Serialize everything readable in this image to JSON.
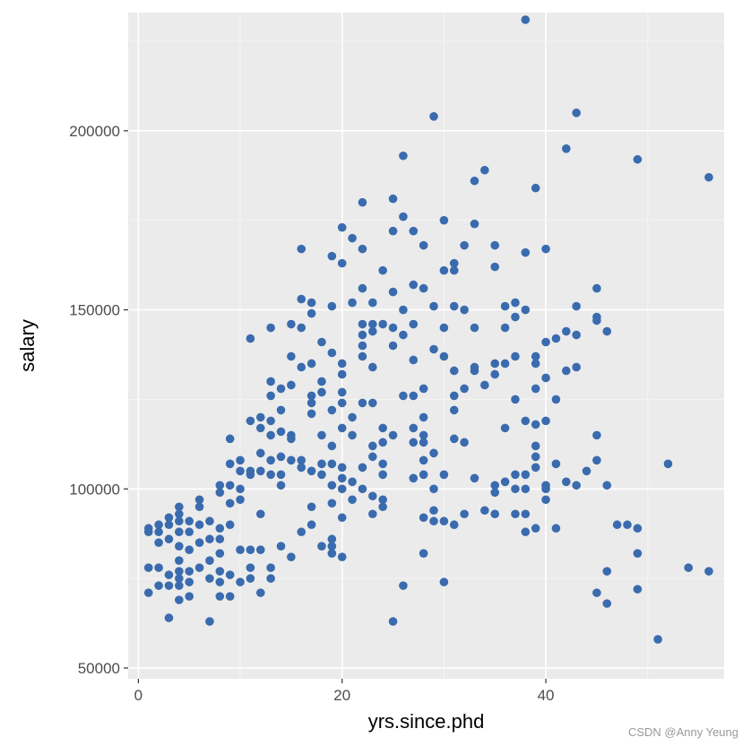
{
  "chart_data": {
    "type": "scatter",
    "title": "",
    "xlabel": "yrs.since.phd",
    "ylabel": "salary",
    "xlim": [
      -1,
      57.5
    ],
    "ylim": [
      47000,
      233000
    ],
    "x_ticks": [
      0,
      20,
      40
    ],
    "x_tick_labels": [
      "0",
      "20",
      "40"
    ],
    "y_ticks": [
      50000,
      100000,
      150000,
      200000
    ],
    "y_tick_labels": [
      "50000",
      "100000",
      "150000",
      "200000"
    ],
    "grid": true,
    "legend": "none",
    "colors": {
      "point": "#3A6BAE",
      "panel": "#EBEBEB",
      "grid_major": "#FFFFFF",
      "grid_minor": "#F5F5F5"
    },
    "points": [
      {
        "x": 1,
        "y": 88000
      },
      {
        "x": 1,
        "y": 89000
      },
      {
        "x": 1,
        "y": 78000
      },
      {
        "x": 1,
        "y": 71000
      },
      {
        "x": 2,
        "y": 88000
      },
      {
        "x": 2,
        "y": 90000
      },
      {
        "x": 2,
        "y": 85000
      },
      {
        "x": 2,
        "y": 78000
      },
      {
        "x": 2,
        "y": 73000
      },
      {
        "x": 3,
        "y": 92000
      },
      {
        "x": 3,
        "y": 90000
      },
      {
        "x": 3,
        "y": 86000
      },
      {
        "x": 3,
        "y": 76000
      },
      {
        "x": 3,
        "y": 73000
      },
      {
        "x": 3,
        "y": 64000
      },
      {
        "x": 4,
        "y": 95000
      },
      {
        "x": 4,
        "y": 93000
      },
      {
        "x": 4,
        "y": 91000
      },
      {
        "x": 4,
        "y": 88000
      },
      {
        "x": 4,
        "y": 84000
      },
      {
        "x": 4,
        "y": 80000
      },
      {
        "x": 4,
        "y": 77000
      },
      {
        "x": 4,
        "y": 75000
      },
      {
        "x": 4,
        "y": 73000
      },
      {
        "x": 4,
        "y": 69000
      },
      {
        "x": 5,
        "y": 91000
      },
      {
        "x": 5,
        "y": 88000
      },
      {
        "x": 5,
        "y": 83000
      },
      {
        "x": 5,
        "y": 77000
      },
      {
        "x": 5,
        "y": 74000
      },
      {
        "x": 5,
        "y": 70000
      },
      {
        "x": 6,
        "y": 97000
      },
      {
        "x": 6,
        "y": 95000
      },
      {
        "x": 6,
        "y": 90000
      },
      {
        "x": 6,
        "y": 85000
      },
      {
        "x": 6,
        "y": 78000
      },
      {
        "x": 7,
        "y": 91000
      },
      {
        "x": 7,
        "y": 86000
      },
      {
        "x": 7,
        "y": 80000
      },
      {
        "x": 7,
        "y": 75000
      },
      {
        "x": 7,
        "y": 63000
      },
      {
        "x": 8,
        "y": 101000
      },
      {
        "x": 8,
        "y": 99000
      },
      {
        "x": 8,
        "y": 89000
      },
      {
        "x": 8,
        "y": 86000
      },
      {
        "x": 8,
        "y": 82000
      },
      {
        "x": 8,
        "y": 77000
      },
      {
        "x": 8,
        "y": 74000
      },
      {
        "x": 8,
        "y": 70000
      },
      {
        "x": 9,
        "y": 114000
      },
      {
        "x": 9,
        "y": 107000
      },
      {
        "x": 9,
        "y": 101000
      },
      {
        "x": 9,
        "y": 96000
      },
      {
        "x": 9,
        "y": 90000
      },
      {
        "x": 9,
        "y": 76000
      },
      {
        "x": 9,
        "y": 70000
      },
      {
        "x": 10,
        "y": 108000
      },
      {
        "x": 10,
        "y": 105000
      },
      {
        "x": 10,
        "y": 100000
      },
      {
        "x": 10,
        "y": 97000
      },
      {
        "x": 10,
        "y": 83000
      },
      {
        "x": 10,
        "y": 74000
      },
      {
        "x": 11,
        "y": 142000
      },
      {
        "x": 11,
        "y": 119000
      },
      {
        "x": 11,
        "y": 105000
      },
      {
        "x": 11,
        "y": 104000
      },
      {
        "x": 11,
        "y": 83000
      },
      {
        "x": 11,
        "y": 78000
      },
      {
        "x": 11,
        "y": 75000
      },
      {
        "x": 12,
        "y": 120000
      },
      {
        "x": 12,
        "y": 117000
      },
      {
        "x": 12,
        "y": 110000
      },
      {
        "x": 12,
        "y": 105000
      },
      {
        "x": 12,
        "y": 93000
      },
      {
        "x": 12,
        "y": 83000
      },
      {
        "x": 12,
        "y": 71000
      },
      {
        "x": 13,
        "y": 145000
      },
      {
        "x": 13,
        "y": 130000
      },
      {
        "x": 13,
        "y": 126000
      },
      {
        "x": 13,
        "y": 119000
      },
      {
        "x": 13,
        "y": 115000
      },
      {
        "x": 13,
        "y": 108000
      },
      {
        "x": 13,
        "y": 104000
      },
      {
        "x": 13,
        "y": 78000
      },
      {
        "x": 13,
        "y": 75000
      },
      {
        "x": 14,
        "y": 128000
      },
      {
        "x": 14,
        "y": 122000
      },
      {
        "x": 14,
        "y": 116000
      },
      {
        "x": 14,
        "y": 109000
      },
      {
        "x": 14,
        "y": 104000
      },
      {
        "x": 14,
        "y": 101000
      },
      {
        "x": 14,
        "y": 84000
      },
      {
        "x": 15,
        "y": 146000
      },
      {
        "x": 15,
        "y": 137000
      },
      {
        "x": 15,
        "y": 129000
      },
      {
        "x": 15,
        "y": 115000
      },
      {
        "x": 15,
        "y": 114000
      },
      {
        "x": 15,
        "y": 108000
      },
      {
        "x": 15,
        "y": 81000
      },
      {
        "x": 16,
        "y": 167000
      },
      {
        "x": 16,
        "y": 153000
      },
      {
        "x": 16,
        "y": 145000
      },
      {
        "x": 16,
        "y": 134000
      },
      {
        "x": 16,
        "y": 108000
      },
      {
        "x": 16,
        "y": 106000
      },
      {
        "x": 16,
        "y": 88000
      },
      {
        "x": 17,
        "y": 152000
      },
      {
        "x": 17,
        "y": 149000
      },
      {
        "x": 17,
        "y": 135000
      },
      {
        "x": 17,
        "y": 126000
      },
      {
        "x": 17,
        "y": 124000
      },
      {
        "x": 17,
        "y": 121000
      },
      {
        "x": 17,
        "y": 105000
      },
      {
        "x": 17,
        "y": 95000
      },
      {
        "x": 17,
        "y": 90000
      },
      {
        "x": 18,
        "y": 141000
      },
      {
        "x": 18,
        "y": 130000
      },
      {
        "x": 18,
        "y": 127000
      },
      {
        "x": 18,
        "y": 115000
      },
      {
        "x": 18,
        "y": 107000
      },
      {
        "x": 18,
        "y": 104000
      },
      {
        "x": 18,
        "y": 84000
      },
      {
        "x": 19,
        "y": 165000
      },
      {
        "x": 19,
        "y": 151000
      },
      {
        "x": 19,
        "y": 138000
      },
      {
        "x": 19,
        "y": 122000
      },
      {
        "x": 19,
        "y": 112000
      },
      {
        "x": 19,
        "y": 107000
      },
      {
        "x": 19,
        "y": 101000
      },
      {
        "x": 19,
        "y": 96000
      },
      {
        "x": 19,
        "y": 86000
      },
      {
        "x": 19,
        "y": 84000
      },
      {
        "x": 19,
        "y": 82000
      },
      {
        "x": 20,
        "y": 173000
      },
      {
        "x": 20,
        "y": 163000
      },
      {
        "x": 20,
        "y": 135000
      },
      {
        "x": 20,
        "y": 132000
      },
      {
        "x": 20,
        "y": 127000
      },
      {
        "x": 20,
        "y": 124000
      },
      {
        "x": 20,
        "y": 117000
      },
      {
        "x": 20,
        "y": 106000
      },
      {
        "x": 20,
        "y": 103000
      },
      {
        "x": 20,
        "y": 100000
      },
      {
        "x": 20,
        "y": 92000
      },
      {
        "x": 20,
        "y": 81000
      },
      {
        "x": 21,
        "y": 170000
      },
      {
        "x": 21,
        "y": 152000
      },
      {
        "x": 21,
        "y": 120000
      },
      {
        "x": 21,
        "y": 115000
      },
      {
        "x": 21,
        "y": 102000
      },
      {
        "x": 21,
        "y": 97000
      },
      {
        "x": 22,
        "y": 180000
      },
      {
        "x": 22,
        "y": 167000
      },
      {
        "x": 22,
        "y": 156000
      },
      {
        "x": 22,
        "y": 146000
      },
      {
        "x": 22,
        "y": 143000
      },
      {
        "x": 22,
        "y": 140000
      },
      {
        "x": 22,
        "y": 137000
      },
      {
        "x": 22,
        "y": 124000
      },
      {
        "x": 22,
        "y": 106000
      },
      {
        "x": 22,
        "y": 100000
      },
      {
        "x": 23,
        "y": 152000
      },
      {
        "x": 23,
        "y": 146000
      },
      {
        "x": 23,
        "y": 144000
      },
      {
        "x": 23,
        "y": 134000
      },
      {
        "x": 23,
        "y": 124000
      },
      {
        "x": 23,
        "y": 112000
      },
      {
        "x": 23,
        "y": 109000
      },
      {
        "x": 23,
        "y": 98000
      },
      {
        "x": 23,
        "y": 93000
      },
      {
        "x": 24,
        "y": 161000
      },
      {
        "x": 24,
        "y": 146000
      },
      {
        "x": 24,
        "y": 117000
      },
      {
        "x": 24,
        "y": 113000
      },
      {
        "x": 24,
        "y": 107000
      },
      {
        "x": 24,
        "y": 104000
      },
      {
        "x": 24,
        "y": 97000
      },
      {
        "x": 24,
        "y": 95000
      },
      {
        "x": 25,
        "y": 181000
      },
      {
        "x": 25,
        "y": 172000
      },
      {
        "x": 25,
        "y": 155000
      },
      {
        "x": 25,
        "y": 145000
      },
      {
        "x": 25,
        "y": 140000
      },
      {
        "x": 25,
        "y": 115000
      },
      {
        "x": 25,
        "y": 63000
      },
      {
        "x": 26,
        "y": 193000
      },
      {
        "x": 26,
        "y": 176000
      },
      {
        "x": 26,
        "y": 150000
      },
      {
        "x": 26,
        "y": 143000
      },
      {
        "x": 26,
        "y": 126000
      },
      {
        "x": 26,
        "y": 73000
      },
      {
        "x": 27,
        "y": 172000
      },
      {
        "x": 27,
        "y": 157000
      },
      {
        "x": 27,
        "y": 146000
      },
      {
        "x": 27,
        "y": 136000
      },
      {
        "x": 27,
        "y": 126000
      },
      {
        "x": 27,
        "y": 117000
      },
      {
        "x": 27,
        "y": 113000
      },
      {
        "x": 27,
        "y": 103000
      },
      {
        "x": 28,
        "y": 168000
      },
      {
        "x": 28,
        "y": 156000
      },
      {
        "x": 28,
        "y": 128000
      },
      {
        "x": 28,
        "y": 120000
      },
      {
        "x": 28,
        "y": 115000
      },
      {
        "x": 28,
        "y": 113000
      },
      {
        "x": 28,
        "y": 108000
      },
      {
        "x": 28,
        "y": 104000
      },
      {
        "x": 28,
        "y": 92000
      },
      {
        "x": 28,
        "y": 82000
      },
      {
        "x": 29,
        "y": 204000
      },
      {
        "x": 29,
        "y": 151000
      },
      {
        "x": 29,
        "y": 139000
      },
      {
        "x": 29,
        "y": 110000
      },
      {
        "x": 29,
        "y": 100000
      },
      {
        "x": 29,
        "y": 94000
      },
      {
        "x": 29,
        "y": 91000
      },
      {
        "x": 30,
        "y": 175000
      },
      {
        "x": 30,
        "y": 161000
      },
      {
        "x": 30,
        "y": 145000
      },
      {
        "x": 30,
        "y": 137000
      },
      {
        "x": 30,
        "y": 104000
      },
      {
        "x": 30,
        "y": 91000
      },
      {
        "x": 30,
        "y": 74000
      },
      {
        "x": 31,
        "y": 163000
      },
      {
        "x": 31,
        "y": 161000
      },
      {
        "x": 31,
        "y": 151000
      },
      {
        "x": 31,
        "y": 133000
      },
      {
        "x": 31,
        "y": 126000
      },
      {
        "x": 31,
        "y": 122000
      },
      {
        "x": 31,
        "y": 114000
      },
      {
        "x": 31,
        "y": 90000
      },
      {
        "x": 32,
        "y": 168000
      },
      {
        "x": 32,
        "y": 150000
      },
      {
        "x": 32,
        "y": 128000
      },
      {
        "x": 32,
        "y": 113000
      },
      {
        "x": 32,
        "y": 93000
      },
      {
        "x": 33,
        "y": 186000
      },
      {
        "x": 33,
        "y": 174000
      },
      {
        "x": 33,
        "y": 145000
      },
      {
        "x": 33,
        "y": 134000
      },
      {
        "x": 33,
        "y": 133000
      },
      {
        "x": 33,
        "y": 103000
      },
      {
        "x": 34,
        "y": 189000
      },
      {
        "x": 34,
        "y": 129000
      },
      {
        "x": 34,
        "y": 94000
      },
      {
        "x": 35,
        "y": 168000
      },
      {
        "x": 35,
        "y": 162000
      },
      {
        "x": 35,
        "y": 135000
      },
      {
        "x": 35,
        "y": 132000
      },
      {
        "x": 35,
        "y": 101000
      },
      {
        "x": 35,
        "y": 99000
      },
      {
        "x": 35,
        "y": 93000
      },
      {
        "x": 36,
        "y": 151000
      },
      {
        "x": 36,
        "y": 145000
      },
      {
        "x": 36,
        "y": 135000
      },
      {
        "x": 36,
        "y": 117000
      },
      {
        "x": 36,
        "y": 102000
      },
      {
        "x": 37,
        "y": 152000
      },
      {
        "x": 37,
        "y": 148000
      },
      {
        "x": 37,
        "y": 137000
      },
      {
        "x": 37,
        "y": 125000
      },
      {
        "x": 37,
        "y": 104000
      },
      {
        "x": 37,
        "y": 100000
      },
      {
        "x": 37,
        "y": 93000
      },
      {
        "x": 38,
        "y": 231000
      },
      {
        "x": 38,
        "y": 166000
      },
      {
        "x": 38,
        "y": 150000
      },
      {
        "x": 38,
        "y": 119000
      },
      {
        "x": 38,
        "y": 104000
      },
      {
        "x": 38,
        "y": 100000
      },
      {
        "x": 38,
        "y": 93000
      },
      {
        "x": 38,
        "y": 88000
      },
      {
        "x": 39,
        "y": 184000
      },
      {
        "x": 39,
        "y": 137000
      },
      {
        "x": 39,
        "y": 135000
      },
      {
        "x": 39,
        "y": 128000
      },
      {
        "x": 39,
        "y": 118000
      },
      {
        "x": 39,
        "y": 112000
      },
      {
        "x": 39,
        "y": 109000
      },
      {
        "x": 39,
        "y": 106000
      },
      {
        "x": 39,
        "y": 89000
      },
      {
        "x": 40,
        "y": 167000
      },
      {
        "x": 40,
        "y": 141000
      },
      {
        "x": 40,
        "y": 131000
      },
      {
        "x": 40,
        "y": 119000
      },
      {
        "x": 40,
        "y": 101000
      },
      {
        "x": 40,
        "y": 100000
      },
      {
        "x": 40,
        "y": 97000
      },
      {
        "x": 41,
        "y": 142000
      },
      {
        "x": 41,
        "y": 125000
      },
      {
        "x": 41,
        "y": 107000
      },
      {
        "x": 41,
        "y": 89000
      },
      {
        "x": 42,
        "y": 195000
      },
      {
        "x": 42,
        "y": 144000
      },
      {
        "x": 42,
        "y": 133000
      },
      {
        "x": 42,
        "y": 102000
      },
      {
        "x": 43,
        "y": 205000
      },
      {
        "x": 43,
        "y": 151000
      },
      {
        "x": 43,
        "y": 143000
      },
      {
        "x": 43,
        "y": 134000
      },
      {
        "x": 43,
        "y": 101000
      },
      {
        "x": 44,
        "y": 105000
      },
      {
        "x": 45,
        "y": 156000
      },
      {
        "x": 45,
        "y": 148000
      },
      {
        "x": 45,
        "y": 147000
      },
      {
        "x": 45,
        "y": 115000
      },
      {
        "x": 45,
        "y": 108000
      },
      {
        "x": 45,
        "y": 71000
      },
      {
        "x": 46,
        "y": 144000
      },
      {
        "x": 46,
        "y": 101000
      },
      {
        "x": 46,
        "y": 77000
      },
      {
        "x": 46,
        "y": 68000
      },
      {
        "x": 47,
        "y": 90000
      },
      {
        "x": 48,
        "y": 90000
      },
      {
        "x": 49,
        "y": 192000
      },
      {
        "x": 49,
        "y": 89000
      },
      {
        "x": 49,
        "y": 82000
      },
      {
        "x": 49,
        "y": 72000
      },
      {
        "x": 51,
        "y": 58000
      },
      {
        "x": 52,
        "y": 107000
      },
      {
        "x": 54,
        "y": 78000
      },
      {
        "x": 56,
        "y": 187000
      },
      {
        "x": 56,
        "y": 77000
      }
    ]
  },
  "watermark": "CSDN @Anny Yeung"
}
